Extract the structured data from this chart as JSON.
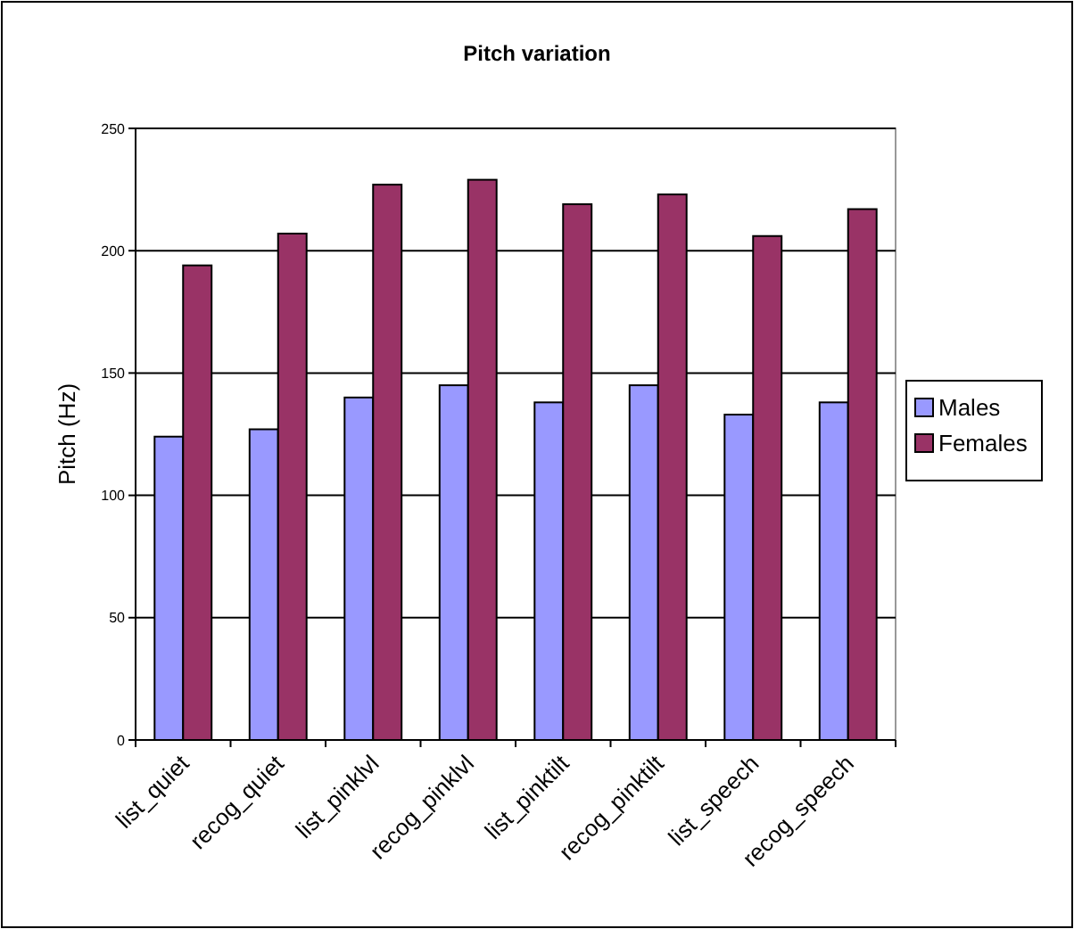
{
  "chart_data": {
    "type": "bar",
    "title": "Pitch variation",
    "ylabel": "Pitch (Hz)",
    "categories": [
      "list_quiet",
      "recog_quiet",
      "list_pinklvl",
      "recog_pinklvl",
      "list_pinktilt",
      "recog_pinktilt",
      "list_speech",
      "recog_speech"
    ],
    "series": [
      {
        "name": "Males",
        "color": "#9999ff",
        "values": [
          124,
          127,
          140,
          145,
          138,
          145,
          133,
          138
        ]
      },
      {
        "name": "Females",
        "color": "#993366",
        "values": [
          194,
          207,
          227,
          229,
          219,
          223,
          206,
          217
        ]
      }
    ],
    "ylim": [
      0,
      250
    ],
    "yticks": [
      0,
      50,
      100,
      150,
      200,
      250
    ],
    "grid": "y",
    "legend": "right"
  }
}
